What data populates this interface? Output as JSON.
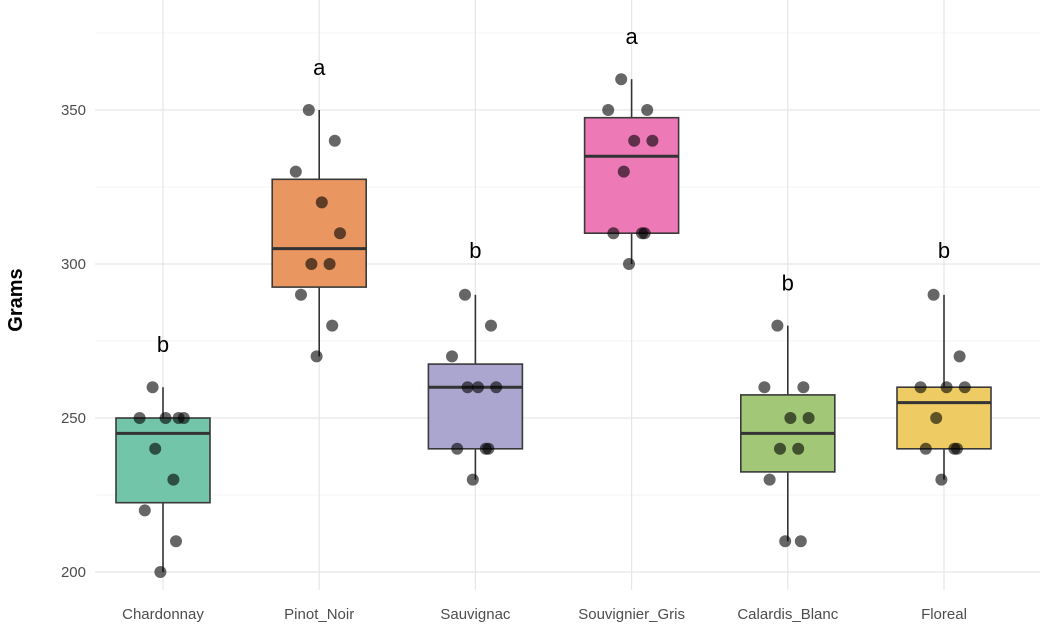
{
  "chart_data": {
    "type": "box",
    "title": "",
    "xlabel": "",
    "ylabel": "Grams",
    "ylim": [
      188,
      385
    ],
    "yticks": [
      200,
      250,
      300,
      350
    ],
    "grid": true,
    "categories": [
      "Chardonnay",
      "Pinot_Noir",
      "Sauvignac",
      "Souvignier_Gris",
      "Calardis_Blanc",
      "Floreal"
    ],
    "colors": [
      "#72c5a9",
      "#ea9660",
      "#aaa6cf",
      "#ee79b7",
      "#a2c877",
      "#efcc63"
    ],
    "boxes": [
      {
        "q1": 222.5,
        "median": 245,
        "q3": 250,
        "whisker_low": 200,
        "whisker_high": 260
      },
      {
        "q1": 292.5,
        "median": 305,
        "q3": 327.5,
        "whisker_low": 270,
        "whisker_high": 350
      },
      {
        "q1": 240,
        "median": 260,
        "q3": 267.5,
        "whisker_low": 230,
        "whisker_high": 290
      },
      {
        "q1": 310,
        "median": 335,
        "q3": 347.5,
        "whisker_low": 300,
        "whisker_high": 360
      },
      {
        "q1": 232.5,
        "median": 245,
        "q3": 257.5,
        "whisker_low": 210,
        "whisker_high": 280
      },
      {
        "q1": 240,
        "median": 255,
        "q3": 260,
        "whisker_low": 230,
        "whisker_high": 290
      }
    ],
    "points": [
      [
        260,
        250,
        250,
        250,
        250,
        240,
        230,
        220,
        210,
        200
      ],
      [
        350,
        340,
        330,
        320,
        310,
        300,
        300,
        290,
        280,
        270
      ],
      [
        290,
        280,
        270,
        260,
        260,
        260,
        240,
        240,
        240,
        230
      ],
      [
        360,
        350,
        350,
        340,
        340,
        330,
        310,
        310,
        310,
        300
      ],
      [
        280,
        260,
        260,
        250,
        250,
        240,
        240,
        230,
        210,
        210
      ],
      [
        290,
        270,
        260,
        260,
        260,
        250,
        240,
        240,
        240,
        230
      ]
    ],
    "significance_labels": [
      "b",
      "a",
      "b",
      "a",
      "b",
      "b"
    ],
    "significance_label_y": [
      274,
      364,
      304.5,
      374,
      294,
      304.5
    ]
  }
}
